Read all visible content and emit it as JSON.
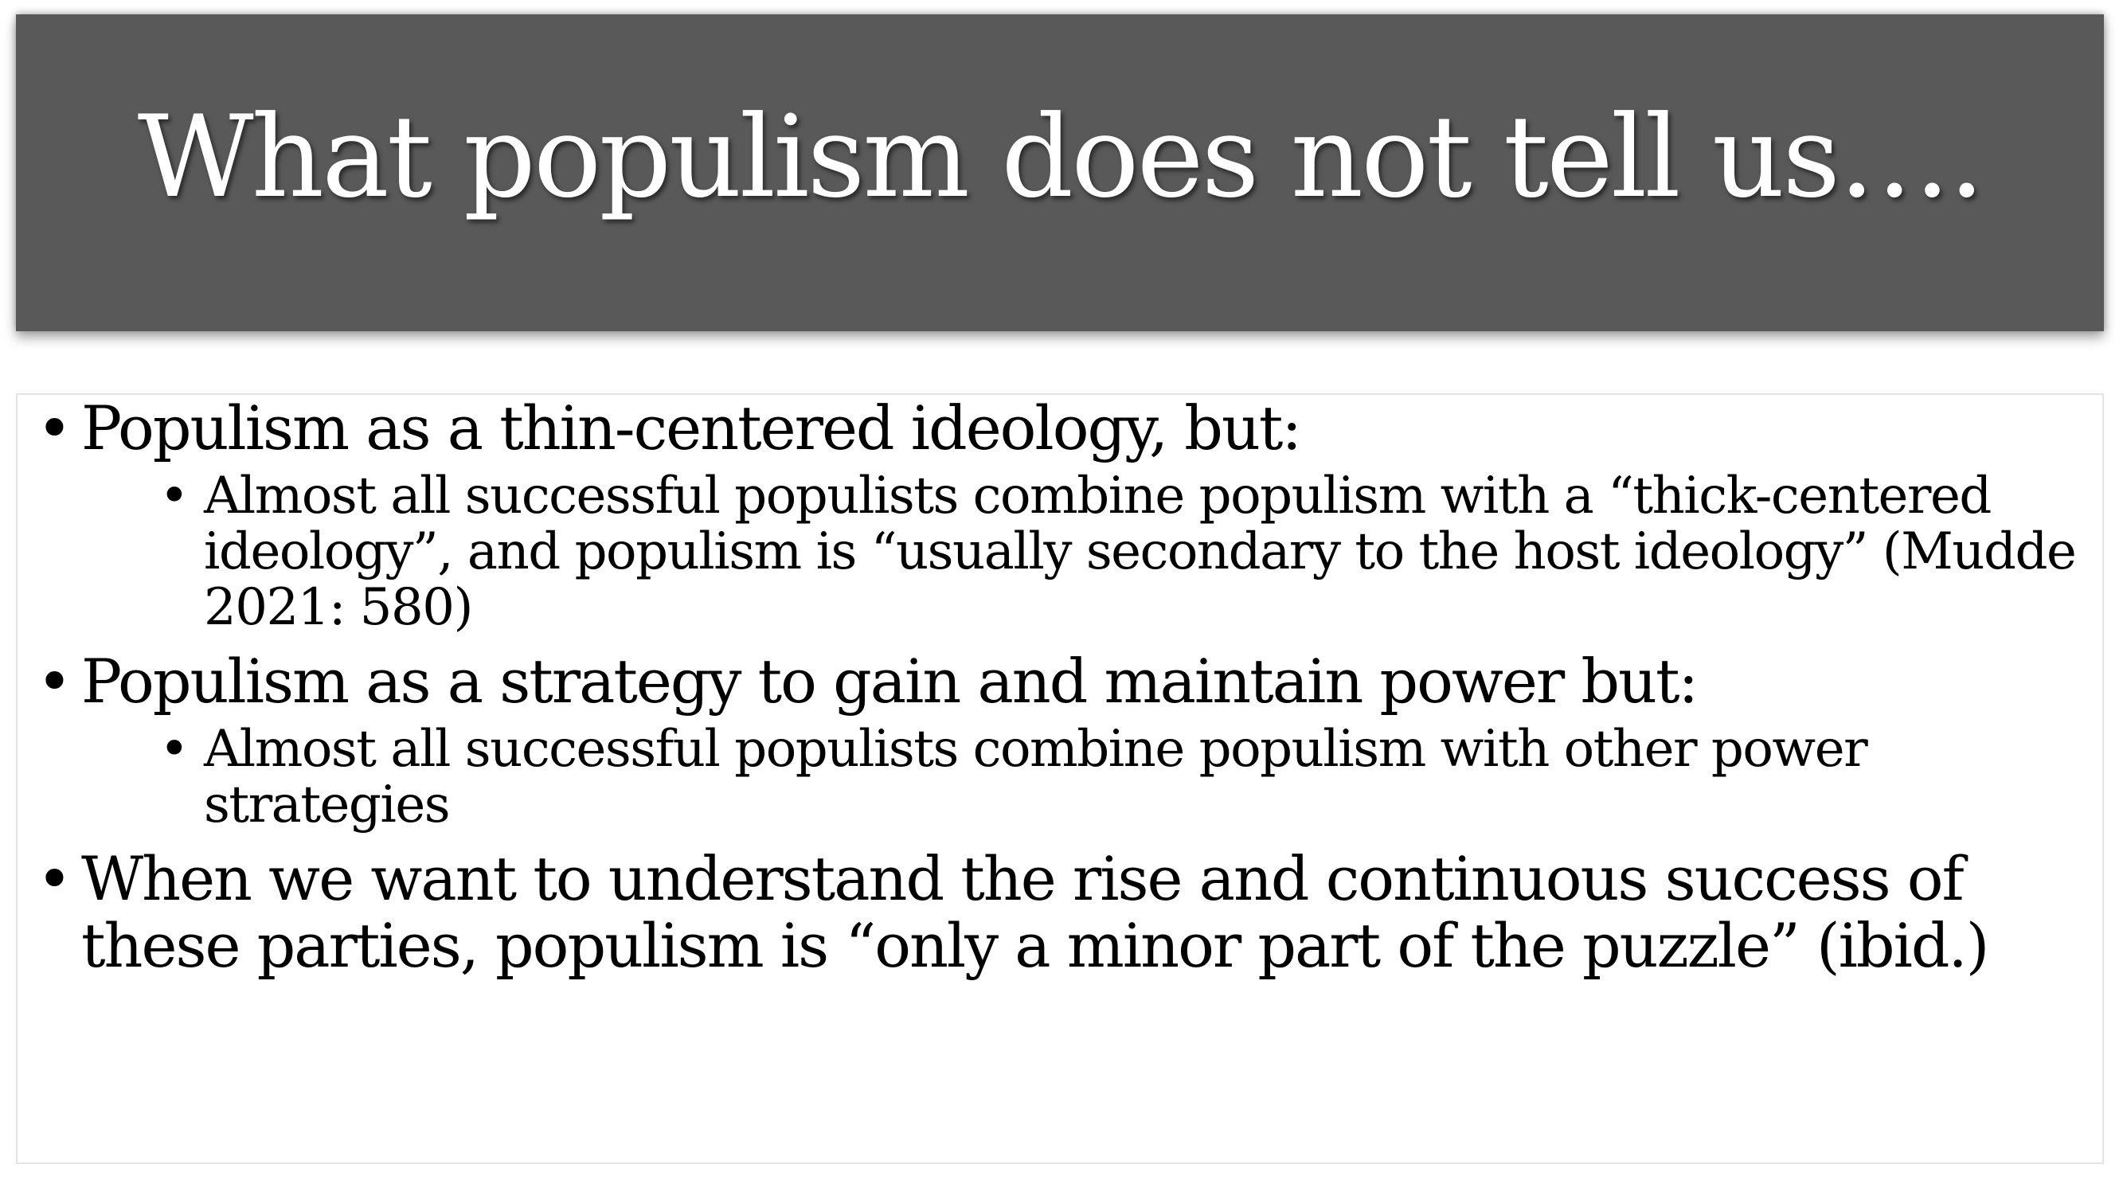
{
  "slide": {
    "title": "What populism does not tell us….",
    "bullet_glyph": "•",
    "points": [
      {
        "text": "Populism as a thin-centered ideology, but:",
        "sub": "Almost all successful populists combine populism with a “thick-centered ideology”, and populism is “usually secondary to the host ideology” (Mudde 2021: 580)"
      },
      {
        "text": "Populism as a strategy to gain and maintain power but:",
        "sub": "Almost all successful populists combine  populism with other power strategies"
      },
      {
        "text": "When we want to understand the rise and continuous success of these parties, populism is “only a minor part of the puzzle” (ibid.)"
      }
    ]
  }
}
